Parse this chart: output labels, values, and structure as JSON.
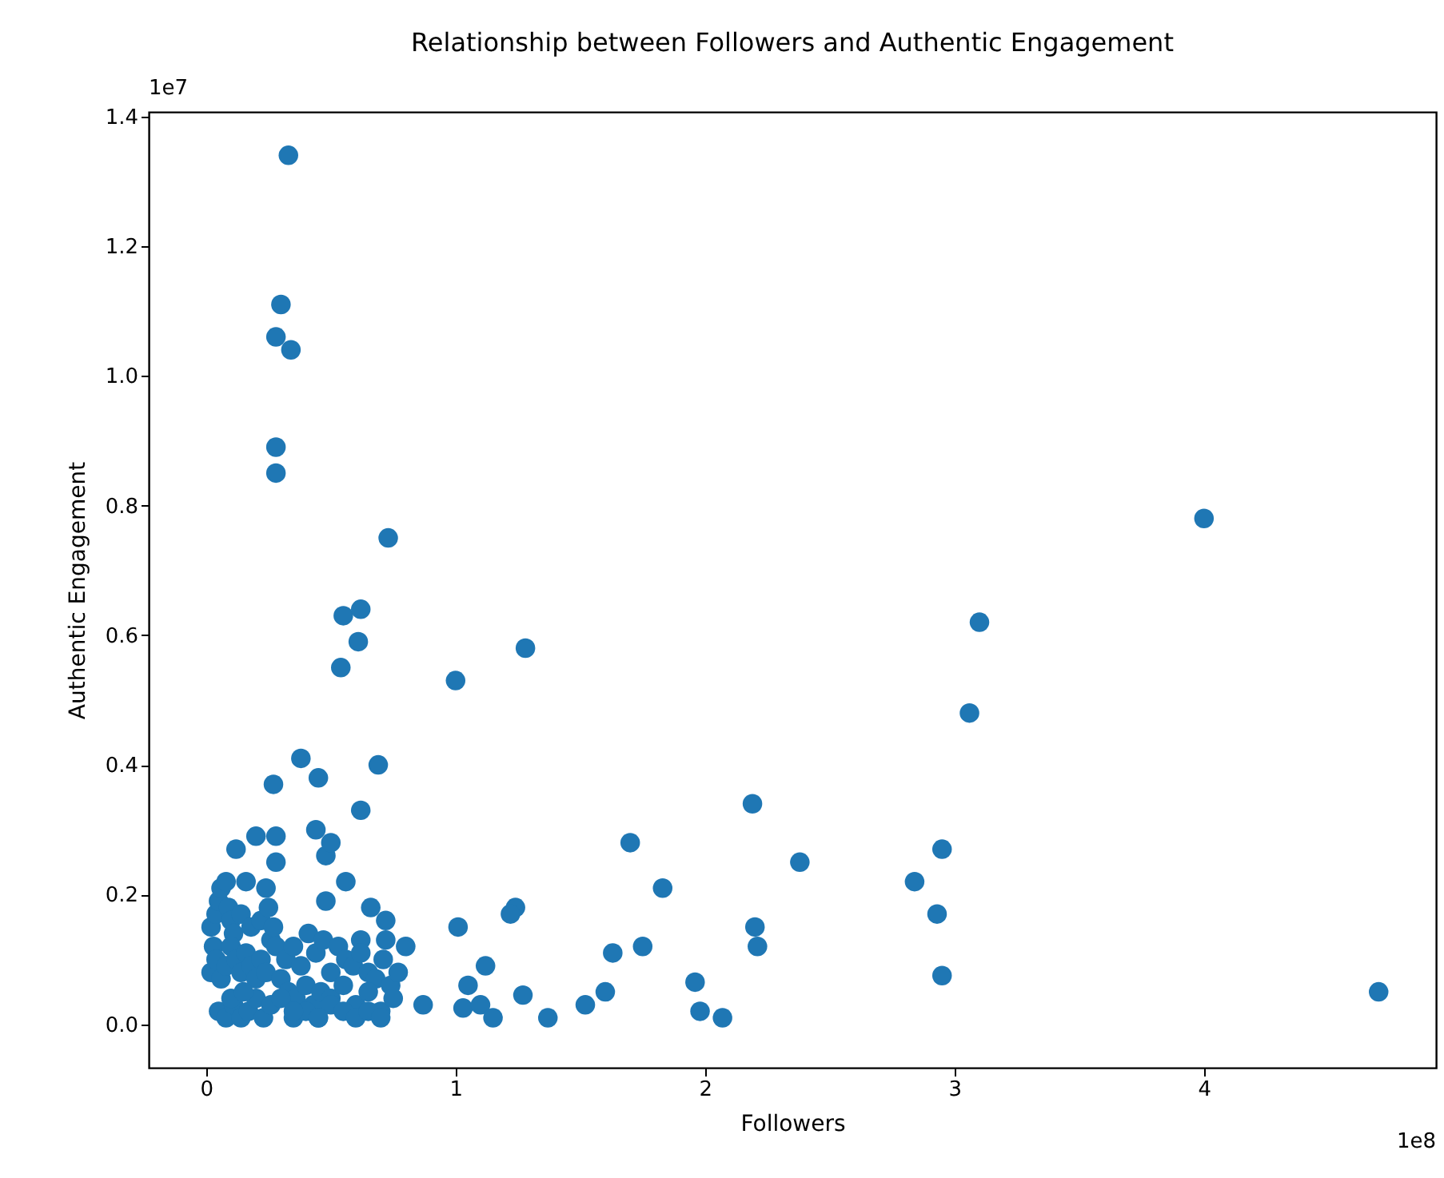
{
  "chart_data": {
    "type": "scatter",
    "title": "Relationship between Followers and Authentic Engagement",
    "xlabel": "Followers",
    "ylabel": "Authentic Engagement",
    "annotations": [
      "1e7",
      "1e8"
    ],
    "marker": "circle",
    "grid": false,
    "xlim": [
      -0.23,
      4.93
    ],
    "ylim": [
      -0.067,
      1.407
    ],
    "xticks": [
      0,
      1,
      2,
      3,
      4
    ],
    "yticks": [
      {
        "value": 0,
        "label": "0.0"
      },
      0.2,
      0.4,
      0.6,
      0.8,
      {
        "value": 1,
        "label": "1.0"
      },
      1.2,
      1.4
    ],
    "series": [
      {
        "color": "#1f77b4",
        "x": [
          0.33,
          0.3,
          0.28,
          0.34,
          0.28,
          0.28,
          0.73,
          0.55,
          0.62,
          0.61,
          0.54,
          1.0,
          1.28,
          0.38,
          0.45,
          0.27,
          0.69,
          0.62,
          0.44,
          0.2,
          0.28,
          0.12,
          0.28,
          0.48,
          0.5,
          0.56,
          0.48,
          0.66,
          0.72,
          0.72,
          0.8,
          0.62,
          0.87,
          4.0,
          3.1,
          3.06,
          2.19,
          1.7,
          2.38,
          2.84,
          2.95,
          2.93,
          2.95,
          1.83,
          1.24,
          1.22,
          1.01,
          2.2,
          2.21,
          1.75,
          1.63,
          1.6,
          1.52,
          1.37,
          1.27,
          1.12,
          1.05,
          1.03,
          1.1,
          1.15,
          1.96,
          1.98,
          2.07,
          4.7,
          0.02,
          0.03,
          0.04,
          0.05,
          0.06,
          0.08,
          0.09,
          0.1,
          0.11,
          0.14,
          0.16,
          0.18,
          0.22,
          0.24,
          0.25,
          0.26,
          0.27,
          0.28,
          0.02,
          0.04,
          0.06,
          0.08,
          0.1,
          0.12,
          0.14,
          0.16,
          0.18,
          0.2,
          0.22,
          0.24,
          0.3,
          0.05,
          0.08,
          0.11,
          0.14,
          0.17,
          0.2,
          0.23,
          0.26,
          0.32,
          0.35,
          0.38,
          0.41,
          0.44,
          0.47,
          0.5,
          0.53,
          0.56,
          0.59,
          0.62,
          0.65,
          0.68,
          0.71,
          0.74,
          0.77,
          0.33,
          0.36,
          0.4,
          0.43,
          0.46,
          0.5,
          0.55,
          0.6,
          0.65,
          0.7,
          0.75,
          0.35,
          0.4,
          0.45,
          0.5,
          0.55,
          0.6,
          0.65,
          0.7,
          0.1,
          0.15,
          0.3,
          0.35,
          0.45
        ],
        "values": [
          1.34,
          1.11,
          1.06,
          1.04,
          0.89,
          0.85,
          0.75,
          0.63,
          0.64,
          0.59,
          0.55,
          0.53,
          0.58,
          0.41,
          0.38,
          0.37,
          0.4,
          0.33,
          0.3,
          0.29,
          0.29,
          0.27,
          0.25,
          0.26,
          0.28,
          0.22,
          0.19,
          0.18,
          0.13,
          0.16,
          0.12,
          0.13,
          0.03,
          0.78,
          0.62,
          0.48,
          0.34,
          0.28,
          0.25,
          0.22,
          0.27,
          0.17,
          0.075,
          0.21,
          0.18,
          0.17,
          0.15,
          0.15,
          0.12,
          0.12,
          0.11,
          0.05,
          0.03,
          0.01,
          0.045,
          0.09,
          0.06,
          0.025,
          0.03,
          0.01,
          0.065,
          0.02,
          0.01,
          0.05,
          0.15,
          0.12,
          0.17,
          0.19,
          0.21,
          0.22,
          0.18,
          0.16,
          0.14,
          0.17,
          0.22,
          0.15,
          0.16,
          0.21,
          0.18,
          0.13,
          0.15,
          0.12,
          0.08,
          0.1,
          0.07,
          0.09,
          0.12,
          0.1,
          0.08,
          0.11,
          0.09,
          0.07,
          0.1,
          0.08,
          0.07,
          0.02,
          0.01,
          0.03,
          0.01,
          0.02,
          0.04,
          0.01,
          0.03,
          0.1,
          0.12,
          0.09,
          0.14,
          0.11,
          0.13,
          0.08,
          0.12,
          0.1,
          0.09,
          0.11,
          0.08,
          0.07,
          0.1,
          0.06,
          0.08,
          0.05,
          0.04,
          0.06,
          0.03,
          0.05,
          0.04,
          0.06,
          0.03,
          0.05,
          0.02,
          0.04,
          0.01,
          0.02,
          0.01,
          0.03,
          0.02,
          0.01,
          0.02,
          0.01,
          0.04,
          0.05,
          0.04,
          0.02,
          0.01
        ]
      }
    ]
  }
}
